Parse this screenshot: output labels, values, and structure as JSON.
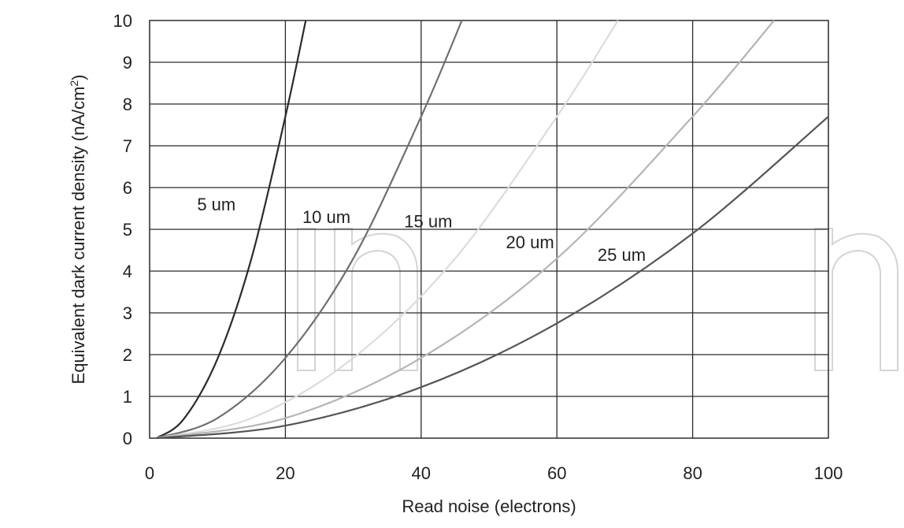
{
  "chart_data": {
    "type": "line",
    "xlabel": "Read noise (electrons)",
    "ylabel_main": "Equivalent dark current density (nA/cm",
    "ylabel_sup": "2",
    "ylabel_close": ")",
    "xlim": [
      0,
      100
    ],
    "ylim": [
      0,
      10
    ],
    "xticks": [
      0,
      20,
      40,
      60,
      80,
      100
    ],
    "yticks": [
      0,
      1,
      2,
      3,
      4,
      5,
      6,
      7,
      8,
      9,
      10
    ],
    "grid": true,
    "legend": "none (series labeled directly on curves)",
    "series": [
      {
        "name": "5 um",
        "color": "#2b2b2b",
        "x": [
          1,
          5,
          10,
          15,
          20,
          23
        ],
        "y": [
          0,
          0.45,
          1.9,
          4.3,
          7.7,
          10
        ]
      },
      {
        "name": "10 um",
        "color": "#6f6f6f",
        "x": [
          1,
          10,
          20,
          30,
          40,
          46
        ],
        "y": [
          0,
          0.48,
          1.92,
          4.3,
          7.7,
          10
        ]
      },
      {
        "name": "15 um",
        "color": "#dcdcdc",
        "x": [
          1,
          15,
          30,
          45,
          60,
          69
        ],
        "y": [
          0,
          0.48,
          1.92,
          4.3,
          7.7,
          10
        ]
      },
      {
        "name": "20 um",
        "color": "#b5b5b5",
        "x": [
          1,
          20,
          40,
          60,
          80,
          92
        ],
        "y": [
          0,
          0.48,
          1.92,
          4.3,
          7.7,
          10
        ]
      },
      {
        "name": "25 um",
        "color": "#555555",
        "x": [
          1,
          20,
          40,
          60,
          80,
          100
        ],
        "y": [
          0,
          0.3,
          1.22,
          2.75,
          4.9,
          7.7
        ]
      }
    ]
  }
}
